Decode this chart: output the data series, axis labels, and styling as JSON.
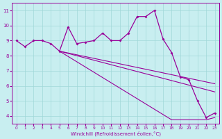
{
  "xlabel": "Windchill (Refroidissement éolien,°C)",
  "x": [
    0,
    1,
    2,
    3,
    4,
    5,
    6,
    7,
    8,
    9,
    10,
    11,
    12,
    13,
    14,
    15,
    16,
    17,
    18,
    19,
    20,
    21,
    22,
    23
  ],
  "y_main": [
    9.0,
    8.6,
    9.0,
    9.0,
    8.8,
    8.3,
    9.9,
    8.8,
    8.9,
    9.0,
    9.5,
    9.0,
    9.0,
    9.5,
    10.6,
    10.6,
    11.0,
    9.1,
    8.2,
    6.6,
    6.4,
    5.0,
    3.9,
    4.2
  ],
  "x_reg": [
    5,
    6,
    7,
    8,
    9,
    10,
    11,
    12,
    13,
    14,
    15,
    16,
    17,
    18,
    19,
    20,
    21,
    22,
    23
  ],
  "y_reg1": [
    8.3,
    8.18,
    8.06,
    7.94,
    7.82,
    7.7,
    7.58,
    7.46,
    7.34,
    7.22,
    7.1,
    6.98,
    6.86,
    6.74,
    6.62,
    6.5,
    6.38,
    6.26,
    6.14
  ],
  "y_reg2": [
    8.3,
    8.15,
    8.0,
    7.85,
    7.7,
    7.55,
    7.4,
    7.25,
    7.1,
    6.95,
    6.8,
    6.65,
    6.5,
    6.35,
    6.2,
    6.05,
    5.9,
    5.75,
    5.6
  ],
  "y_reg3": [
    8.3,
    7.95,
    7.6,
    7.25,
    6.9,
    6.55,
    6.2,
    5.85,
    5.5,
    5.15,
    4.8,
    4.45,
    4.1,
    3.75,
    3.75,
    3.75,
    3.75,
    3.75,
    3.9
  ],
  "color": "#990099",
  "bg_color": "#c8eef0",
  "grid_color": "#a0d8d8",
  "ylim": [
    3.5,
    11.5
  ],
  "xlim": [
    -0.5,
    23.5
  ],
  "yticks": [
    4,
    5,
    6,
    7,
    8,
    9,
    10,
    11
  ],
  "xticks": [
    0,
    1,
    2,
    3,
    4,
    5,
    6,
    7,
    8,
    9,
    10,
    11,
    12,
    13,
    14,
    15,
    16,
    17,
    18,
    19,
    20,
    21,
    22,
    23
  ]
}
